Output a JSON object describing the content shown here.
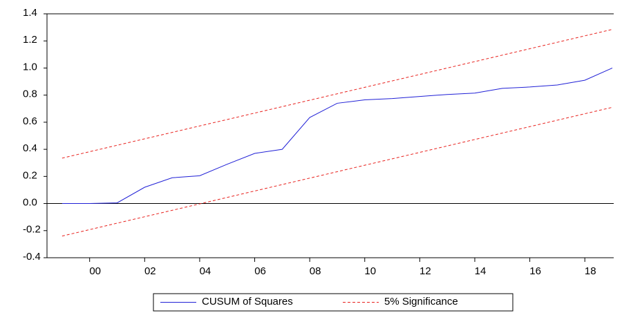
{
  "chart_data": {
    "type": "line",
    "x": [
      1999,
      2000,
      2001,
      2002,
      2003,
      2004,
      2005,
      2006,
      2007,
      2008,
      2009,
      2010,
      2011,
      2012,
      2013,
      2014,
      2015,
      2016,
      2017,
      2018,
      2019
    ],
    "series": [
      {
        "name": "CUSUM of Squares",
        "color": "#1f1fd6",
        "values": [
          0,
          0,
          0.005,
          0.12,
          0.19,
          0.205,
          0.29,
          0.37,
          0.4,
          0.635,
          0.74,
          0.765,
          0.775,
          0.79,
          0.805,
          0.815,
          0.85,
          0.86,
          0.875,
          0.91,
          1.0
        ]
      },
      {
        "name": "5% Significance",
        "color": "#e8201c",
        "dashed": true,
        "upper": [
          0.335,
          0.3825,
          0.43,
          0.4775,
          0.525,
          0.5725,
          0.62,
          0.6675,
          0.715,
          0.7625,
          0.81,
          0.8575,
          0.905,
          0.9525,
          1.0,
          1.0475,
          1.095,
          1.1425,
          1.19,
          1.2375,
          1.285
        ],
        "lower": [
          -0.24,
          -0.1925,
          -0.145,
          -0.0975,
          -0.05,
          -0.0025,
          0.045,
          0.0925,
          0.14,
          0.1875,
          0.235,
          0.2825,
          0.33,
          0.3775,
          0.425,
          0.4725,
          0.52,
          0.5675,
          0.615,
          0.6625,
          0.71
        ]
      }
    ],
    "xlim": [
      1998.45,
      2019.05
    ],
    "xticks": [
      {
        "value": 2000,
        "label": "00"
      },
      {
        "value": 2002,
        "label": "02"
      },
      {
        "value": 2004,
        "label": "04"
      },
      {
        "value": 2006,
        "label": "06"
      },
      {
        "value": 2008,
        "label": "08"
      },
      {
        "value": 2010,
        "label": "10"
      },
      {
        "value": 2012,
        "label": "12"
      },
      {
        "value": 2014,
        "label": "14"
      },
      {
        "value": 2016,
        "label": "16"
      },
      {
        "value": 2018,
        "label": "18"
      }
    ],
    "ylim": [
      -0.4,
      1.4
    ],
    "yticks": [
      -0.4,
      -0.2,
      {
        "value": 0,
        "label": "0.0"
      },
      0.2,
      0.4,
      0.6,
      0.8,
      {
        "value": 1,
        "label": "1.0"
      },
      1.2,
      1.4
    ],
    "zero_line": true,
    "legend": "bottom"
  }
}
